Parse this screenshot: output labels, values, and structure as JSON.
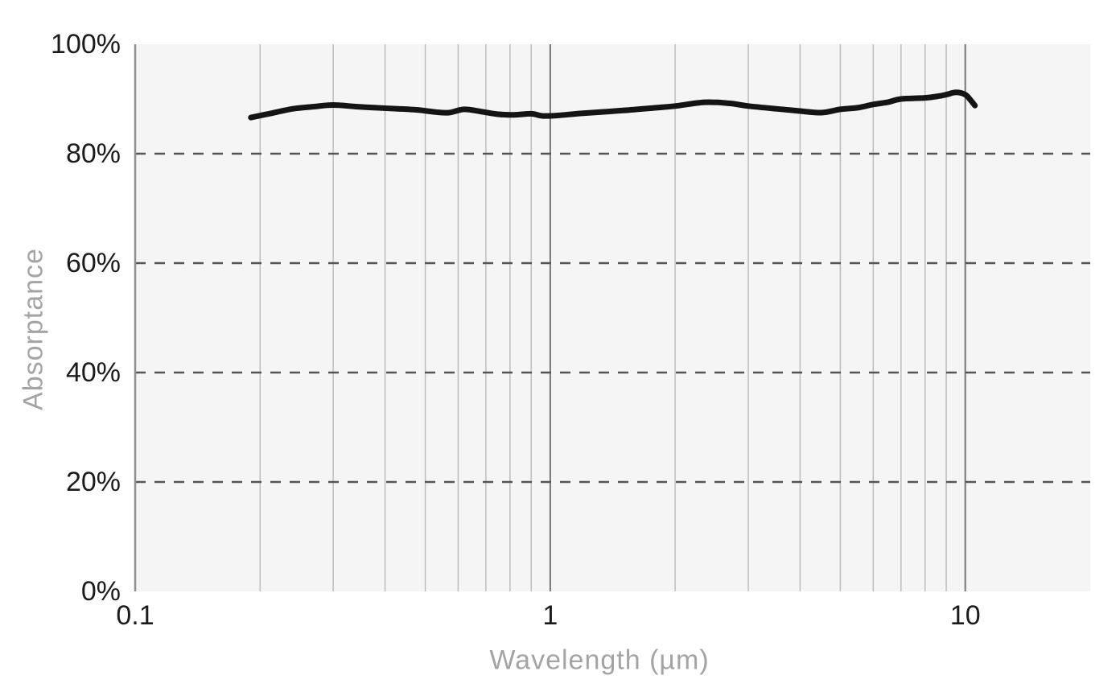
{
  "colors": {
    "page_background": "#ffffff",
    "plot_background": "#f5f5f5",
    "minor_gridline": "#bdbdbd",
    "major_gridline": "#757575",
    "axis_line": "#8f8f8f",
    "dashed_gridline": "#555555",
    "curve": "#141414",
    "tick_label": "#1b1b1b",
    "axis_title": "#a4a4a4"
  },
  "chart_data": {
    "type": "line",
    "title": "",
    "xlabel": "Wavelength (µm)",
    "ylabel": "Absorptance",
    "x_scale": "log",
    "xlim": [
      0.1,
      20
    ],
    "ylim": [
      0,
      100
    ],
    "y_unit": "%",
    "grid": true,
    "legend": "none",
    "x_ticks": [
      {
        "value": 0.1,
        "label": "0.1"
      },
      {
        "value": 1,
        "label": "1"
      },
      {
        "value": 10,
        "label": "10"
      }
    ],
    "y_ticks": [
      {
        "value": 0,
        "label": "0%"
      },
      {
        "value": 20,
        "label": "20%"
      },
      {
        "value": 40,
        "label": "40%"
      },
      {
        "value": 60,
        "label": "60%"
      },
      {
        "value": 80,
        "label": "80%"
      },
      {
        "value": 100,
        "label": "100%"
      }
    ],
    "x_minor_gridlines": [
      0.2,
      0.3,
      0.4,
      0.5,
      0.6,
      0.7,
      0.8,
      0.9,
      2,
      3,
      4,
      5,
      6,
      7,
      8,
      9
    ],
    "x_major_gridlines": [
      1,
      10
    ],
    "y_dashed_gridlines": [
      20,
      40,
      60,
      80
    ],
    "series": [
      {
        "name": "Absorptance",
        "x": [
          0.19,
          0.21,
          0.24,
          0.27,
          0.3,
          0.34,
          0.38,
          0.43,
          0.48,
          0.53,
          0.57,
          0.62,
          0.68,
          0.75,
          0.82,
          0.9,
          0.96,
          1.05,
          1.2,
          1.5,
          1.8,
          2.0,
          2.35,
          2.7,
          3.0,
          3.5,
          4.0,
          4.5,
          5.0,
          5.5,
          6.0,
          6.5,
          7.0,
          8.0,
          8.6,
          9.0,
          9.5,
          10.0,
          10.3,
          10.55
        ],
        "y_pct": [
          86.6,
          87.3,
          88.2,
          88.6,
          88.9,
          88.6,
          88.4,
          88.2,
          88.0,
          87.6,
          87.5,
          88.1,
          87.7,
          87.2,
          87.1,
          87.3,
          86.9,
          87.0,
          87.4,
          87.9,
          88.4,
          88.7,
          89.4,
          89.2,
          88.7,
          88.2,
          87.8,
          87.5,
          88.1,
          88.4,
          89.0,
          89.4,
          90.0,
          90.2,
          90.5,
          90.8,
          91.2,
          90.8,
          89.8,
          88.8
        ]
      }
    ]
  }
}
